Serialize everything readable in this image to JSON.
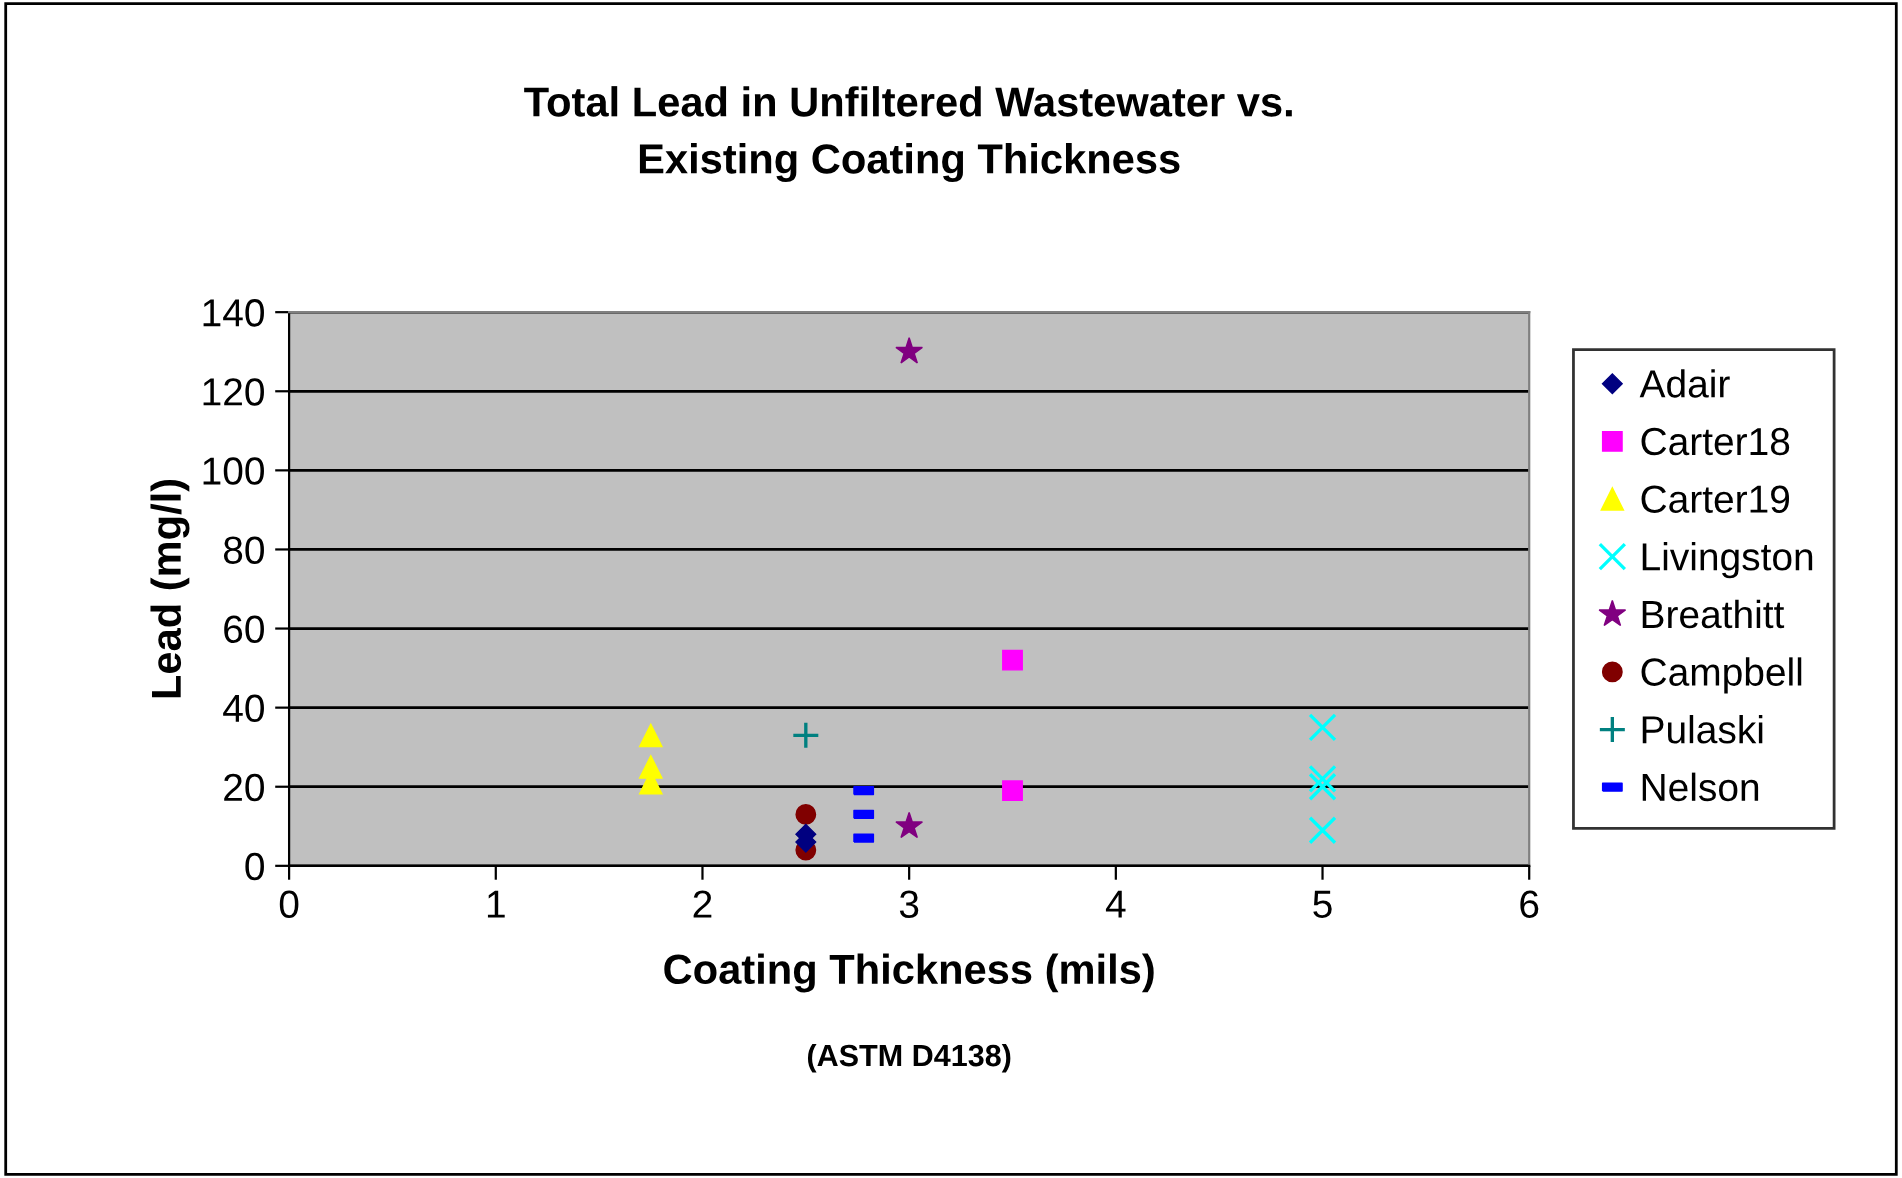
{
  "chart_data": {
    "type": "scatter",
    "title": "Total Lead in Unfiltered Wastewater vs.\nExisting Coating Thickness",
    "xlabel": "Coating Thickness (mils)",
    "ylabel": "Lead (mg/l)",
    "annotations": [
      "(ASTM D4138)"
    ],
    "xlim": [
      0,
      6
    ],
    "xticks": [
      0,
      1,
      2,
      3,
      4,
      5,
      6
    ],
    "ylim": [
      0,
      140
    ],
    "yticks": [
      0,
      20,
      40,
      60,
      80,
      100,
      120,
      140
    ],
    "grid": "y",
    "legend": "right",
    "series": [
      {
        "name": "Adair",
        "color": "#000080",
        "marker": "diamond",
        "x": [
          2.5,
          2.5
        ],
        "values": [
          8,
          6
        ]
      },
      {
        "name": "Carter18",
        "color": "#ff00ff",
        "marker": "square",
        "x": [
          3.5,
          3.5
        ],
        "values": [
          52,
          19
        ]
      },
      {
        "name": "Carter19",
        "color": "#ffff00",
        "marker": "triangle",
        "x": [
          1.75,
          1.75,
          1.75
        ],
        "values": [
          33,
          25,
          21
        ]
      },
      {
        "name": "Livingston",
        "color": "#00ffff",
        "marker": "cross",
        "x": [
          5,
          5,
          5,
          5
        ],
        "values": [
          35,
          22,
          20,
          9
        ]
      },
      {
        "name": "Breathitt",
        "color": "#800080",
        "marker": "star",
        "x": [
          3,
          3
        ],
        "values": [
          130,
          10
        ]
      },
      {
        "name": "Campbell",
        "color": "#800000",
        "marker": "circle",
        "x": [
          2.5,
          2.5
        ],
        "values": [
          13,
          4
        ]
      },
      {
        "name": "Pulaski",
        "color": "#008080",
        "marker": "plus",
        "x": [
          2.5
        ],
        "values": [
          33
        ]
      },
      {
        "name": "Nelson",
        "color": "#0000ff",
        "x": [
          2.78,
          2.78,
          2.78
        ],
        "values": [
          19,
          13,
          7
        ]
      }
    ]
  }
}
